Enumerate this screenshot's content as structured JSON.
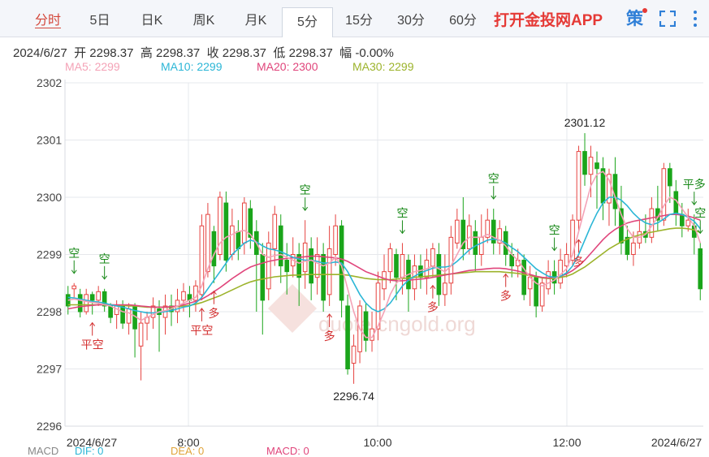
{
  "tabs": [
    {
      "label": "分时"
    },
    {
      "label": "5日"
    },
    {
      "label": "日K"
    },
    {
      "label": "周K"
    },
    {
      "label": "月K"
    },
    {
      "label": "5分"
    },
    {
      "label": "15分"
    },
    {
      "label": "30分"
    },
    {
      "label": "60分"
    }
  ],
  "selected_tab": "5分",
  "app_link": "打开金投网APP",
  "icons": {
    "strategy": "策",
    "fullscreen": "fullscreen-icon",
    "more": "more-vertical-icon"
  },
  "info": {
    "date": "2024/6/27",
    "open_label": "开",
    "open": "2298.37",
    "high_label": "高",
    "high": "2298.37",
    "close_label": "收",
    "close": "2298.37",
    "low_label": "低",
    "low": "2298.37",
    "change_label": "幅",
    "change": "-0.00%"
  },
  "ma": [
    {
      "label": "MA5: 2299",
      "color": "#f4a3b7"
    },
    {
      "label": "MA10: 2299",
      "color": "#2bb6d6"
    },
    {
      "label": "MA20: 2300",
      "color": "#e0457b"
    },
    {
      "label": "MA30: 2299",
      "color": "#9cb32b"
    }
  ],
  "macd": {
    "label": "MACD",
    "dif": "DIF: 0",
    "dea": "DEA: 0",
    "macd": "MACD: 0"
  },
  "watermark": "quote.cngold.org",
  "chart_data": {
    "type": "candlestick",
    "yticks": [
      "2302",
      "2301",
      "2300",
      "2299",
      "2298",
      "2297",
      "2296"
    ],
    "ylim": [
      2296,
      2302
    ],
    "xticks": [
      "2024/6/27",
      "8:00",
      "10:00",
      "12:00",
      "2024/6/27"
    ],
    "high_label": "2301.12",
    "low_label": "2296.74",
    "up_color": "#e64340",
    "down_color": "#1aa51a",
    "candles": [
      [
        2298.3,
        2298.1,
        2298.45,
        2297.95
      ],
      [
        2298.4,
        2298.45,
        2298.5,
        2298.25
      ],
      [
        2298.3,
        2298.0,
        2298.4,
        2297.9
      ],
      [
        2298.0,
        2298.3,
        2298.4,
        2297.95
      ],
      [
        2298.3,
        2298.2,
        2298.35,
        2297.95
      ],
      [
        2298.2,
        2298.35,
        2298.45,
        2298.1
      ],
      [
        2298.35,
        2298.1,
        2298.4,
        2298.0
      ],
      [
        2298.1,
        2297.9,
        2298.15,
        2297.8
      ],
      [
        2297.95,
        2298.1,
        2298.2,
        2297.7
      ],
      [
        2298.1,
        2297.8,
        2298.2,
        2297.7
      ],
      [
        2297.8,
        2298.05,
        2298.15,
        2297.6
      ],
      [
        2298.1,
        2297.7,
        2298.15,
        2297.2
      ],
      [
        2297.4,
        2297.8,
        2298.0,
        2296.8
      ],
      [
        2297.8,
        2297.9,
        2298.0,
        2297.5
      ],
      [
        2297.9,
        2298.1,
        2298.25,
        2297.7
      ],
      [
        2298.05,
        2297.95,
        2298.2,
        2297.3
      ],
      [
        2297.9,
        2298.1,
        2298.3,
        2297.6
      ],
      [
        2298.1,
        2298.0,
        2298.3,
        2297.75
      ],
      [
        2298.0,
        2298.2,
        2298.4,
        2297.8
      ],
      [
        2298.2,
        2298.35,
        2298.5,
        2298.0
      ],
      [
        2298.3,
        2298.2,
        2298.45,
        2297.9
      ],
      [
        2298.2,
        2298.45,
        2298.55,
        2298.0
      ],
      [
        2298.3,
        2299.5,
        2299.7,
        2298.2
      ],
      [
        2298.7,
        2299.7,
        2299.9,
        2298.6
      ],
      [
        2299.4,
        2298.8,
        2299.5,
        2298.5
      ],
      [
        2299.0,
        2300.0,
        2300.1,
        2298.9
      ],
      [
        2299.9,
        2298.9,
        2300.1,
        2298.7
      ],
      [
        2299.0,
        2299.5,
        2299.8,
        2298.9
      ],
      [
        2299.4,
        2299.1,
        2299.6,
        2298.9
      ],
      [
        2299.2,
        2299.9,
        2300.0,
        2299.0
      ],
      [
        2299.8,
        2299.3,
        2299.95,
        2299.1
      ],
      [
        2299.4,
        2299.0,
        2299.6,
        2298.0
      ],
      [
        2299.0,
        2298.2,
        2299.2,
        2297.6
      ],
      [
        2298.4,
        2299.2,
        2299.4,
        2298.2
      ],
      [
        2299.1,
        2299.7,
        2299.85,
        2298.8
      ],
      [
        2299.5,
        2298.8,
        2299.7,
        2298.5
      ],
      [
        2298.9,
        2298.7,
        2299.2,
        2298.3
      ],
      [
        2298.8,
        2299.0,
        2299.3,
        2298.6
      ],
      [
        2299.0,
        2298.6,
        2299.2,
        2298.1
      ],
      [
        2298.7,
        2299.2,
        2299.6,
        2298.4
      ],
      [
        2299.1,
        2298.5,
        2299.3,
        2298.2
      ],
      [
        2298.6,
        2299.0,
        2299.3,
        2298.3
      ],
      [
        2299.0,
        2298.2,
        2299.2,
        2298.0
      ],
      [
        2298.3,
        2299.1,
        2299.5,
        2298.1
      ],
      [
        2299.0,
        2299.5,
        2299.7,
        2298.8
      ],
      [
        2299.5,
        2298.2,
        2299.6,
        2297.9
      ],
      [
        2298.1,
        2297.0,
        2298.3,
        2296.9
      ],
      [
        2297.1,
        2297.4,
        2297.6,
        2296.74
      ],
      [
        2297.3,
        2298.1,
        2298.2,
        2297.1
      ],
      [
        2298.0,
        2297.5,
        2298.15,
        2297.3
      ],
      [
        2297.5,
        2297.7,
        2298.0,
        2297.3
      ],
      [
        2297.7,
        2298.5,
        2298.7,
        2297.5
      ],
      [
        2298.4,
        2298.7,
        2299.0,
        2298.2
      ],
      [
        2298.7,
        2299.1,
        2299.2,
        2298.5
      ],
      [
        2299.0,
        2298.6,
        2299.1,
        2298.2
      ],
      [
        2298.6,
        2299.0,
        2299.2,
        2298.3
      ],
      [
        2298.9,
        2298.4,
        2299.0,
        2298.0
      ],
      [
        2298.4,
        2298.8,
        2299.0,
        2298.2
      ],
      [
        2298.8,
        2298.6,
        2299.0,
        2298.4
      ],
      [
        2298.6,
        2298.9,
        2299.1,
        2298.3
      ],
      [
        2298.8,
        2299.1,
        2299.2,
        2298.6
      ],
      [
        2299.0,
        2298.3,
        2299.2,
        2298.1
      ],
      [
        2298.3,
        2298.5,
        2299.0,
        2298.1
      ],
      [
        2298.5,
        2299.3,
        2299.5,
        2298.3
      ],
      [
        2299.2,
        2299.6,
        2299.8,
        2299.1
      ],
      [
        2299.6,
        2299.1,
        2300.0,
        2298.9
      ],
      [
        2299.1,
        2299.5,
        2299.7,
        2299.0
      ],
      [
        2299.4,
        2299.0,
        2299.6,
        2298.7
      ],
      [
        2299.0,
        2299.3,
        2299.7,
        2298.8
      ],
      [
        2299.3,
        2299.6,
        2299.8,
        2299.2
      ],
      [
        2299.6,
        2299.2,
        2299.8,
        2299.0
      ],
      [
        2299.2,
        2299.45,
        2299.6,
        2299.0
      ],
      [
        2299.4,
        2299.0,
        2299.5,
        2298.8
      ],
      [
        2299.0,
        2298.8,
        2299.2,
        2298.6
      ],
      [
        2298.8,
        2298.9,
        2299.1,
        2298.6
      ],
      [
        2298.9,
        2298.3,
        2299.0,
        2298.2
      ],
      [
        2298.4,
        2298.6,
        2298.8,
        2298.1
      ],
      [
        2298.6,
        2298.1,
        2298.7,
        2297.9
      ],
      [
        2298.1,
        2298.5,
        2298.6,
        2298.0
      ],
      [
        2298.4,
        2298.7,
        2298.9,
        2298.3
      ],
      [
        2298.7,
        2298.5,
        2298.9,
        2298.3
      ],
      [
        2298.5,
        2298.9,
        2299.1,
        2298.4
      ],
      [
        2298.8,
        2299.0,
        2299.2,
        2298.6
      ],
      [
        2298.9,
        2299.6,
        2299.7,
        2298.8
      ],
      [
        2299.6,
        2300.8,
        2300.9,
        2299.4
      ],
      [
        2300.8,
        2300.4,
        2301.12,
        2300.2
      ],
      [
        2300.4,
        2300.7,
        2300.9,
        2300.0
      ],
      [
        2300.6,
        2300.5,
        2300.8,
        2299.8
      ],
      [
        2300.5,
        2299.9,
        2300.7,
        2299.6
      ],
      [
        2299.9,
        2300.4,
        2300.5,
        2299.5
      ],
      [
        2300.4,
        2299.8,
        2300.7,
        2299.5
      ],
      [
        2299.8,
        2299.2,
        2300.2,
        2299.0
      ],
      [
        2299.3,
        2299.0,
        2299.5,
        2298.9
      ],
      [
        2299.0,
        2299.2,
        2299.4,
        2298.8
      ],
      [
        2299.2,
        2299.4,
        2299.6,
        2299.1
      ],
      [
        2299.4,
        2299.3,
        2299.7,
        2299.2
      ],
      [
        2299.3,
        2299.8,
        2300.0,
        2299.2
      ],
      [
        2299.8,
        2299.6,
        2300.2,
        2299.4
      ],
      [
        2299.6,
        2300.5,
        2300.6,
        2299.5
      ],
      [
        2300.5,
        2300.2,
        2300.6,
        2299.9
      ],
      [
        2300.1,
        2299.7,
        2300.3,
        2299.5
      ],
      [
        2299.7,
        2299.5,
        2299.9,
        2299.3
      ],
      [
        2299.5,
        2299.6,
        2299.8,
        2299.4
      ],
      [
        2299.5,
        2299.3,
        2299.7,
        2299.0
      ],
      [
        2299.1,
        2298.4,
        2299.2,
        2298.2
      ]
    ],
    "ma5": [
      2298.2,
      2298.22,
      2298.2,
      2298.18,
      2298.16,
      2298.15,
      2298.12,
      2298.1,
      2298.05,
      2298.0,
      2297.98,
      2297.92,
      2297.85,
      2297.9,
      2297.95,
      2298.0,
      2298.02,
      2298.05,
      2298.1,
      2298.15,
      2298.2,
      2298.25,
      2298.45,
      2298.75,
      2299.0,
      2299.2,
      2299.3,
      2299.35,
      2299.4,
      2299.42,
      2299.35,
      2299.2,
      2299.0,
      2298.95,
      2298.98,
      2299.0,
      2298.95,
      2298.9,
      2298.85,
      2298.88,
      2298.9,
      2298.85,
      2298.8,
      2298.85,
      2298.95,
      2298.8,
      2298.4,
      2298.0,
      2297.7,
      2297.55,
      2297.55,
      2297.75,
      2298.0,
      2298.3,
      2298.5,
      2298.6,
      2298.65,
      2298.7,
      2298.72,
      2298.75,
      2298.8,
      2298.75,
      2298.7,
      2298.8,
      2299.0,
      2299.2,
      2299.3,
      2299.3,
      2299.3,
      2299.35,
      2299.3,
      2299.25,
      2299.15,
      2299.0,
      2298.9,
      2298.75,
      2298.6,
      2298.5,
      2298.45,
      2298.5,
      2298.55,
      2298.65,
      2298.75,
      2299.0,
      2299.4,
      2299.8,
      2300.2,
      2300.4,
      2300.45,
      2300.3,
      2300.0,
      2299.7,
      2299.45,
      2299.3,
      2299.3,
      2299.35,
      2299.5,
      2299.65,
      2299.85,
      2300.0,
      2299.95,
      2299.8,
      2299.65,
      2299.5,
      2299.2
    ],
    "ma10": [
      2298.25,
      2298.24,
      2298.22,
      2298.2,
      2298.18,
      2298.17,
      2298.15,
      2298.12,
      2298.1,
      2298.08,
      2298.05,
      2298.02,
      2298.0,
      2297.98,
      2297.98,
      2297.99,
      2298.0,
      2298.02,
      2298.05,
      2298.08,
      2298.1,
      2298.15,
      2298.25,
      2298.4,
      2298.55,
      2298.7,
      2298.85,
      2299.0,
      2299.1,
      2299.2,
      2299.25,
      2299.22,
      2299.15,
      2299.1,
      2299.08,
      2299.05,
      2299.0,
      2298.95,
      2298.92,
      2298.9,
      2298.9,
      2298.88,
      2298.85,
      2298.85,
      2298.87,
      2298.85,
      2298.7,
      2298.5,
      2298.3,
      2298.15,
      2298.05,
      2298.0,
      2298.05,
      2298.15,
      2298.3,
      2298.45,
      2298.55,
      2298.62,
      2298.68,
      2298.72,
      2298.76,
      2298.78,
      2298.78,
      2298.8,
      2298.88,
      2298.98,
      2299.08,
      2299.15,
      2299.2,
      2299.25,
      2299.27,
      2299.25,
      2299.2,
      2299.12,
      2299.05,
      2298.95,
      2298.85,
      2298.75,
      2298.68,
      2298.62,
      2298.6,
      2298.62,
      2298.68,
      2298.8,
      2299.0,
      2299.25,
      2299.5,
      2299.72,
      2299.9,
      2300.0,
      2300.0,
      2299.95,
      2299.85,
      2299.72,
      2299.62,
      2299.55,
      2299.52,
      2299.55,
      2299.62,
      2299.7,
      2299.72,
      2299.7,
      2299.65,
      2299.58,
      2299.45
    ],
    "ma20": [
      2298.05,
      2298.07,
      2298.09,
      2298.1,
      2298.11,
      2298.12,
      2298.12,
      2298.12,
      2298.12,
      2298.12,
      2298.12,
      2298.11,
      2298.1,
      2298.09,
      2298.08,
      2298.08,
      2298.08,
      2298.09,
      2298.1,
      2298.12,
      2298.15,
      2298.18,
      2298.22,
      2298.28,
      2298.35,
      2298.42,
      2298.5,
      2298.58,
      2298.65,
      2298.72,
      2298.78,
      2298.82,
      2298.85,
      2298.88,
      2298.9,
      2298.92,
      2298.93,
      2298.94,
      2298.95,
      2298.96,
      2298.97,
      2298.97,
      2298.96,
      2298.95,
      2298.94,
      2298.92,
      2298.88,
      2298.82,
      2298.76,
      2298.7,
      2298.66,
      2298.62,
      2298.58,
      2298.55,
      2298.54,
      2298.54,
      2298.55,
      2298.56,
      2298.57,
      2298.58,
      2298.6,
      2298.62,
      2298.64,
      2298.66,
      2298.68,
      2298.7,
      2298.72,
      2298.73,
      2298.74,
      2298.75,
      2298.76,
      2298.76,
      2298.75,
      2298.73,
      2298.71,
      2298.68,
      2298.65,
      2298.62,
      2298.6,
      2298.59,
      2298.6,
      2298.62,
      2298.66,
      2298.72,
      2298.8,
      2298.9,
      2299.02,
      2299.14,
      2299.26,
      2299.36,
      2299.44,
      2299.5,
      2299.55,
      2299.58,
      2299.6,
      2299.62,
      2299.64,
      2299.66,
      2299.68,
      2299.7,
      2299.7,
      2299.69,
      2299.67,
      2299.64,
      2299.6
    ],
    "ma30": [
      2298.12,
      2298.12,
      2298.12,
      2298.12,
      2298.12,
      2298.12,
      2298.12,
      2298.12,
      2298.11,
      2298.11,
      2298.1,
      2298.1,
      2298.09,
      2298.08,
      2298.08,
      2298.08,
      2298.08,
      2298.08,
      2298.09,
      2298.1,
      2298.11,
      2298.13,
      2298.16,
      2298.2,
      2298.24,
      2298.28,
      2298.33,
      2298.38,
      2298.43,
      2298.48,
      2298.52,
      2298.55,
      2298.57,
      2298.59,
      2298.61,
      2298.62,
      2298.63,
      2298.64,
      2298.64,
      2298.65,
      2298.65,
      2298.65,
      2298.65,
      2298.65,
      2298.65,
      2298.65,
      2298.64,
      2298.62,
      2298.6,
      2298.58,
      2298.57,
      2298.56,
      2298.56,
      2298.56,
      2298.57,
      2298.58,
      2298.59,
      2298.6,
      2298.61,
      2298.62,
      2298.63,
      2298.64,
      2298.65,
      2298.66,
      2298.67,
      2298.68,
      2298.69,
      2298.7,
      2298.7,
      2298.7,
      2298.7,
      2298.7,
      2298.69,
      2298.68,
      2298.67,
      2298.65,
      2298.63,
      2298.61,
      2298.59,
      2298.58,
      2298.58,
      2298.6,
      2298.62,
      2298.66,
      2298.72,
      2298.78,
      2298.86,
      2298.94,
      2299.02,
      2299.1,
      2299.16,
      2299.22,
      2299.27,
      2299.31,
      2299.34,
      2299.37,
      2299.39,
      2299.41,
      2299.43,
      2299.45,
      2299.46,
      2299.46,
      2299.45,
      2299.43,
      2299.38
    ],
    "signals": [
      {
        "i": 1,
        "text": "空",
        "type": "short"
      },
      {
        "i": 6,
        "text": "空",
        "type": "short"
      },
      {
        "i": 4,
        "text": "平空",
        "type": "close-short"
      },
      {
        "i": 39,
        "text": "空",
        "type": "short"
      },
      {
        "i": 43,
        "text": "多",
        "type": "long"
      },
      {
        "i": 55,
        "text": "空",
        "type": "short"
      },
      {
        "i": 60,
        "text": "多",
        "type": "long"
      },
      {
        "i": 22,
        "text": "平空",
        "type": "close-short"
      },
      {
        "i": 24,
        "text": "多",
        "type": "long"
      },
      {
        "i": 70,
        "text": "空",
        "type": "short"
      },
      {
        "i": 72,
        "text": "多",
        "type": "long"
      },
      {
        "i": 80,
        "text": "空",
        "type": "short"
      },
      {
        "i": 84,
        "text": "多",
        "type": "long"
      },
      {
        "i": 103,
        "text": "平多",
        "type": "close-long"
      },
      {
        "i": 104,
        "text": "空",
        "type": "short"
      }
    ]
  }
}
